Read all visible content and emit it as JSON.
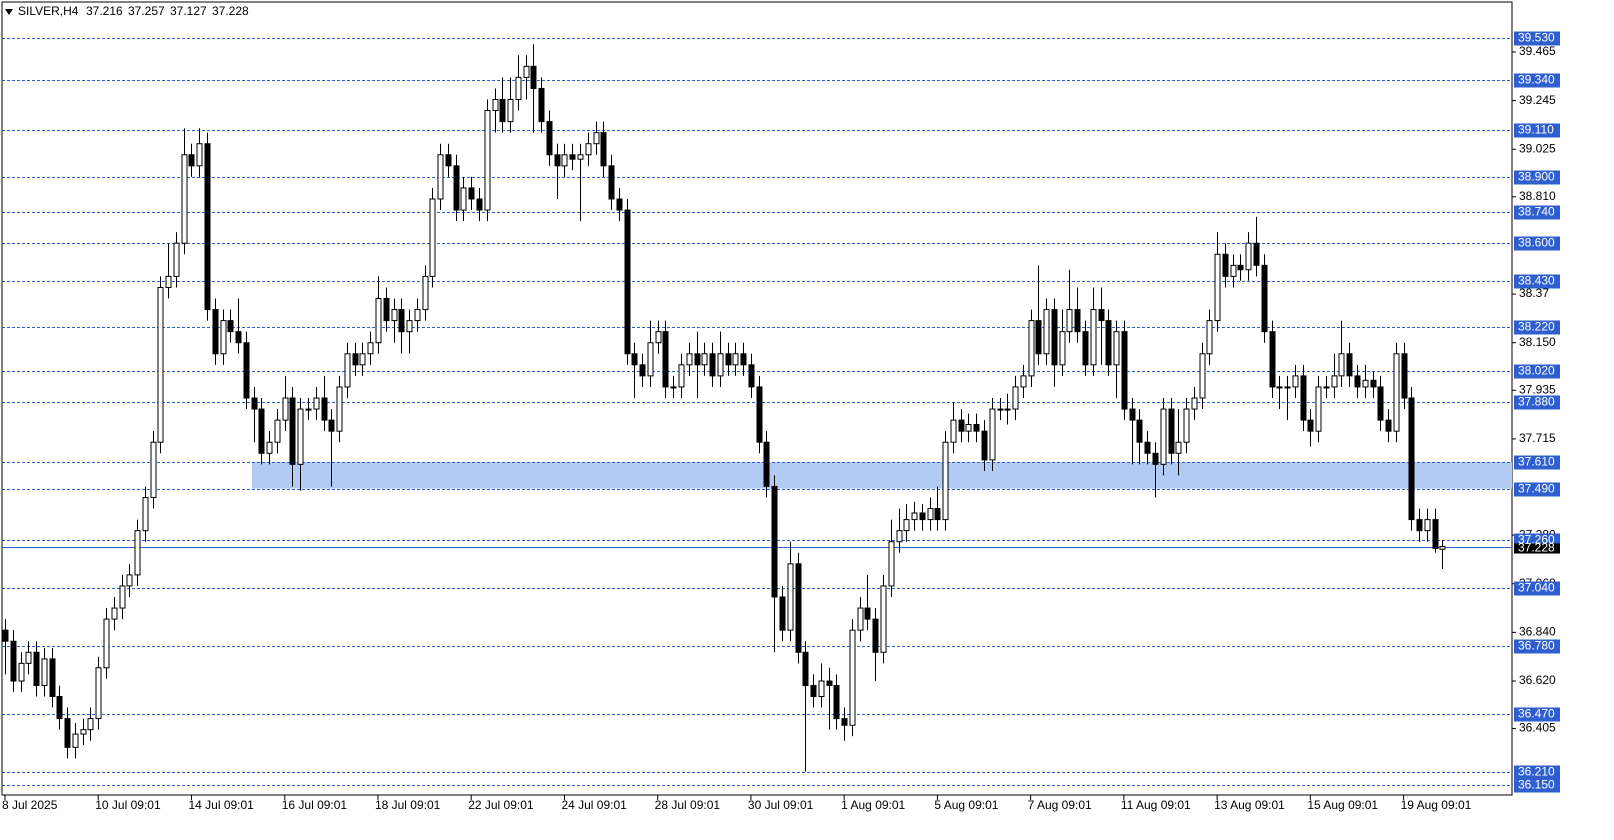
{
  "chart_data": {
    "type": "candlestick",
    "symbol": "SILVER,H4",
    "header_values": [
      37.216,
      37.257,
      37.127,
      37.228
    ],
    "categories": [
      "8 Jul 2025",
      null,
      null,
      null,
      null,
      null,
      null,
      null,
      null,
      null,
      null,
      null,
      "10 Jul 09:01",
      null,
      null,
      null,
      null,
      null,
      null,
      null,
      null,
      null,
      null,
      null,
      "14 Jul 09:01",
      null,
      null,
      null,
      null,
      null,
      null,
      null,
      null,
      null,
      null,
      null,
      "16 Jul 09:01",
      null,
      null,
      null,
      null,
      null,
      null,
      null,
      null,
      null,
      null,
      null,
      "18 Jul 09:01",
      null,
      null,
      null,
      null,
      null,
      null,
      null,
      null,
      null,
      null,
      null,
      "22 Jul 09:01",
      null,
      null,
      null,
      null,
      null,
      null,
      null,
      null,
      null,
      null,
      null,
      "24 Jul 09:01",
      null,
      null,
      null,
      null,
      null,
      null,
      null,
      null,
      null,
      null,
      null,
      "28 Jul 09:01",
      null,
      null,
      null,
      null,
      null,
      null,
      null,
      null,
      null,
      null,
      null,
      "30 Jul 09:01",
      null,
      null,
      null,
      null,
      null,
      null,
      null,
      null,
      null,
      null,
      null,
      "1 Aug 09:01",
      null,
      null,
      null,
      null,
      null,
      null,
      null,
      null,
      null,
      null,
      null,
      "5 Aug 09:01",
      null,
      null,
      null,
      null,
      null,
      null,
      null,
      null,
      null,
      null,
      null,
      "7 Aug 09:01",
      null,
      null,
      null,
      null,
      null,
      null,
      null,
      null,
      null,
      null,
      null,
      "11 Aug 09:01",
      null,
      null,
      null,
      null,
      null,
      null,
      null,
      null,
      null,
      null,
      null,
      "13 Aug 09:01",
      null,
      null,
      null,
      null,
      null,
      null,
      null,
      null,
      null,
      null,
      null,
      "15 Aug 09:01",
      null,
      null,
      null,
      null,
      null,
      null,
      null,
      null,
      null,
      null,
      null,
      "19 Aug 09:01",
      null,
      null,
      null,
      null,
      null
    ],
    "open": [
      36.85,
      36.8,
      36.62,
      36.7,
      36.75,
      36.6,
      36.72,
      36.55,
      36.45,
      36.32,
      36.38,
      36.4,
      36.45,
      36.68,
      36.9,
      36.95,
      37.05,
      37.1,
      37.3,
      37.45,
      37.7,
      38.4,
      38.45,
      38.6,
      39.0,
      38.95,
      39.05,
      38.3,
      38.1,
      38.25,
      38.2,
      38.15,
      37.9,
      37.85,
      37.65,
      37.7,
      37.8,
      37.9,
      37.6,
      37.85,
      37.85,
      37.9,
      37.8,
      37.75,
      37.95,
      38.1,
      38.05,
      38.1,
      38.15,
      38.35,
      38.25,
      38.3,
      38.2,
      38.25,
      38.3,
      38.45,
      38.8,
      39.0,
      38.95,
      38.75,
      38.85,
      38.8,
      38.75,
      39.2,
      39.25,
      39.15,
      39.25,
      39.35,
      39.4,
      39.3,
      39.15,
      39.0,
      38.95,
      39.0,
      38.98,
      39.0,
      39.05,
      39.1,
      38.95,
      38.8,
      38.75,
      38.1,
      38.05,
      38.0,
      38.15,
      38.2,
      37.95,
      37.95,
      38.05,
      38.1,
      38.05,
      38.1,
      38.0,
      38.1,
      38.05,
      38.1,
      38.05,
      37.95,
      37.7,
      37.5,
      37.0,
      36.85,
      37.15,
      36.75,
      36.6,
      36.55,
      36.62,
      36.6,
      36.45,
      36.42,
      36.85,
      36.95,
      36.9,
      36.75,
      37.05,
      37.25,
      37.3,
      37.35,
      37.38,
      37.35,
      37.4,
      37.35,
      37.7,
      37.8,
      37.75,
      37.78,
      37.75,
      37.62,
      37.85,
      37.85,
      37.85,
      37.95,
      38.0,
      38.25,
      38.1,
      38.3,
      38.05,
      38.2,
      38.3,
      38.2,
      38.05,
      38.3,
      38.25,
      38.05,
      38.2,
      37.85,
      37.8,
      37.7,
      37.65,
      37.6,
      37.85,
      37.65,
      37.7,
      37.85,
      37.9,
      38.1,
      38.25,
      38.55,
      38.45,
      38.5,
      38.48,
      38.6,
      38.5,
      38.2,
      37.95,
      37.95,
      37.95,
      38.0,
      37.8,
      37.75,
      37.95,
      37.95,
      38.0,
      38.1,
      38.0,
      37.95,
      37.98,
      37.95,
      37.8,
      37.75,
      38.1,
      37.9,
      37.35,
      37.3,
      37.35,
      37.216
    ],
    "high": [
      36.9,
      36.85,
      36.75,
      36.8,
      36.8,
      36.77,
      36.77,
      36.6,
      36.5,
      36.43,
      36.45,
      36.5,
      36.73,
      36.95,
      37.0,
      37.1,
      37.15,
      37.35,
      37.5,
      37.75,
      38.45,
      38.6,
      38.65,
      39.12,
      39.05,
      39.12,
      39.1,
      38.35,
      38.3,
      38.3,
      38.35,
      38.2,
      37.95,
      37.9,
      37.75,
      37.85,
      38.0,
      37.95,
      37.9,
      37.9,
      37.95,
      38.0,
      37.85,
      38.0,
      38.15,
      38.15,
      38.15,
      38.2,
      38.45,
      38.4,
      38.35,
      38.35,
      38.3,
      38.35,
      38.5,
      38.85,
      39.05,
      39.05,
      39.0,
      38.9,
      38.9,
      38.85,
      39.25,
      39.3,
      39.35,
      39.35,
      39.45,
      39.45,
      39.5,
      39.35,
      39.2,
      39.05,
      39.05,
      39.05,
      39.05,
      39.1,
      39.15,
      39.15,
      39.0,
      38.85,
      38.8,
      38.15,
      38.1,
      38.25,
      38.25,
      38.25,
      38.0,
      38.1,
      38.15,
      38.2,
      38.15,
      38.15,
      38.2,
      38.15,
      38.15,
      38.15,
      38.1,
      38.0,
      37.75,
      37.55,
      37.05,
      37.25,
      37.2,
      36.8,
      36.65,
      36.7,
      36.68,
      36.65,
      36.5,
      36.9,
      37.0,
      37.1,
      36.95,
      37.1,
      37.35,
      37.4,
      37.42,
      37.43,
      37.42,
      37.45,
      37.5,
      37.75,
      37.88,
      37.85,
      37.83,
      37.83,
      37.8,
      37.9,
      37.9,
      37.92,
      38.0,
      38.05,
      38.3,
      38.5,
      38.35,
      38.35,
      38.3,
      38.48,
      38.4,
      38.25,
      38.4,
      38.4,
      38.3,
      38.25,
      38.25,
      37.9,
      37.85,
      37.75,
      37.7,
      37.9,
      37.9,
      37.85,
      37.9,
      37.95,
      38.15,
      38.3,
      38.65,
      38.6,
      38.55,
      38.55,
      38.65,
      38.72,
      38.55,
      38.25,
      38.0,
      38.0,
      38.05,
      38.05,
      37.85,
      38.0,
      38.0,
      38.1,
      38.25,
      38.15,
      38.05,
      38.05,
      38.02,
      38.0,
      37.85,
      38.15,
      38.15,
      37.95,
      37.4,
      37.4,
      37.4,
      37.257
    ],
    "low": [
      36.65,
      36.57,
      36.57,
      36.65,
      36.55,
      36.55,
      36.5,
      36.4,
      36.27,
      36.27,
      36.33,
      36.35,
      36.4,
      36.63,
      36.85,
      36.9,
      37.0,
      37.05,
      37.25,
      37.4,
      37.65,
      38.35,
      38.4,
      38.55,
      38.9,
      38.9,
      38.25,
      38.05,
      38.05,
      38.15,
      38.1,
      37.85,
      37.7,
      37.6,
      37.6,
      37.65,
      37.75,
      37.5,
      37.48,
      37.8,
      37.8,
      37.75,
      37.5,
      37.7,
      37.9,
      38.0,
      38.0,
      38.05,
      38.1,
      38.2,
      38.15,
      38.1,
      38.1,
      38.2,
      38.25,
      38.4,
      38.75,
      38.9,
      38.7,
      38.7,
      38.75,
      38.7,
      38.7,
      39.1,
      39.1,
      39.1,
      39.2,
      39.25,
      39.1,
      39.1,
      38.95,
      38.8,
      38.9,
      38.93,
      38.7,
      38.95,
      39.0,
      38.9,
      38.75,
      38.7,
      38.05,
      37.9,
      37.95,
      37.95,
      38.1,
      37.9,
      37.9,
      37.9,
      38.0,
      37.9,
      38.0,
      37.95,
      37.95,
      38.0,
      38.0,
      38.0,
      37.9,
      37.65,
      37.45,
      36.75,
      36.8,
      36.8,
      36.7,
      36.21,
      36.5,
      36.5,
      36.4,
      36.4,
      36.35,
      36.37,
      36.8,
      36.85,
      36.62,
      36.7,
      37.0,
      37.2,
      37.25,
      37.3,
      37.3,
      37.3,
      37.3,
      37.3,
      37.65,
      37.7,
      37.7,
      37.7,
      37.57,
      37.57,
      37.8,
      37.78,
      37.8,
      37.9,
      37.95,
      38.05,
      38.05,
      37.95,
      38.0,
      38.15,
      38.15,
      38.0,
      38.0,
      38.05,
      38.0,
      37.9,
      37.8,
      37.6,
      37.6,
      37.6,
      37.45,
      37.55,
      37.6,
      37.55,
      37.65,
      37.8,
      37.85,
      38.05,
      38.2,
      38.4,
      38.4,
      38.43,
      38.43,
      38.45,
      38.15,
      37.9,
      37.85,
      37.8,
      37.9,
      37.75,
      37.68,
      37.7,
      37.9,
      37.9,
      37.95,
      37.95,
      37.9,
      37.9,
      37.9,
      37.75,
      37.7,
      37.7,
      37.85,
      37.3,
      37.25,
      37.25,
      37.2,
      37.127
    ],
    "close": [
      36.8,
      36.62,
      36.7,
      36.75,
      36.6,
      36.72,
      36.55,
      36.45,
      36.32,
      36.38,
      36.4,
      36.45,
      36.68,
      36.9,
      36.95,
      37.05,
      37.1,
      37.3,
      37.45,
      37.7,
      38.4,
      38.45,
      38.6,
      39.0,
      38.95,
      39.05,
      38.3,
      38.1,
      38.25,
      38.2,
      38.15,
      37.9,
      37.85,
      37.65,
      37.7,
      37.8,
      37.9,
      37.6,
      37.85,
      37.85,
      37.9,
      37.8,
      37.75,
      37.95,
      38.1,
      38.05,
      38.1,
      38.15,
      38.35,
      38.25,
      38.3,
      38.2,
      38.25,
      38.3,
      38.45,
      38.8,
      39.0,
      38.95,
      38.75,
      38.85,
      38.8,
      38.75,
      39.2,
      39.25,
      39.15,
      39.25,
      39.35,
      39.4,
      39.3,
      39.15,
      39.0,
      38.95,
      39.0,
      38.98,
      39.0,
      39.05,
      39.1,
      38.95,
      38.8,
      38.75,
      38.1,
      38.05,
      38.0,
      38.15,
      38.2,
      37.95,
      37.95,
      38.05,
      38.1,
      38.05,
      38.1,
      38.0,
      38.1,
      38.05,
      38.1,
      38.05,
      37.95,
      37.7,
      37.5,
      37.0,
      36.85,
      37.15,
      36.75,
      36.6,
      36.55,
      36.62,
      36.6,
      36.45,
      36.42,
      36.85,
      36.95,
      36.9,
      36.75,
      37.05,
      37.25,
      37.3,
      37.35,
      37.38,
      37.35,
      37.4,
      37.35,
      37.7,
      37.8,
      37.75,
      37.78,
      37.75,
      37.62,
      37.85,
      37.85,
      37.85,
      37.95,
      38.0,
      38.25,
      38.1,
      38.3,
      38.05,
      38.2,
      38.3,
      38.2,
      38.05,
      38.3,
      38.25,
      38.05,
      38.2,
      37.85,
      37.8,
      37.7,
      37.65,
      37.6,
      37.85,
      37.65,
      37.7,
      37.85,
      37.9,
      38.1,
      38.25,
      38.55,
      38.45,
      38.5,
      38.48,
      38.6,
      38.5,
      38.2,
      37.95,
      37.95,
      37.95,
      38.0,
      37.8,
      37.75,
      37.95,
      37.95,
      38.0,
      38.1,
      38.0,
      37.95,
      37.98,
      37.95,
      37.8,
      37.75,
      38.1,
      37.9,
      37.35,
      37.3,
      37.35,
      37.22,
      37.228
    ],
    "ylim": [
      36.1,
      39.7
    ],
    "yticks": [
      39.465,
      39.245,
      39.025,
      {
        "value": 38.81,
        "label": "38.810"
      },
      38.37,
      {
        "value": 38.15,
        "label": "38.150"
      },
      37.935,
      37.715,
      {
        "value": 37.28,
        "label": "37.280"
      },
      {
        "value": 37.06,
        "label": "37.060"
      },
      {
        "value": 36.84,
        "label": "36.840"
      },
      {
        "value": 36.62,
        "label": "36.620"
      },
      36.405
    ],
    "levels": [
      {
        "value": 39.53,
        "label": "39.530"
      },
      {
        "value": 39.34,
        "label": "39.340"
      },
      {
        "value": 39.11,
        "label": "39.110"
      },
      {
        "value": 38.9,
        "label": "38.900"
      },
      {
        "value": 38.74,
        "label": "38.740"
      },
      {
        "value": 38.6,
        "label": "38.600"
      },
      {
        "value": 38.43,
        "label": "38.430"
      },
      {
        "value": 38.22,
        "label": "38.220"
      },
      {
        "value": 38.02,
        "label": "38.020"
      },
      {
        "value": 37.88,
        "label": "37.880"
      },
      {
        "value": 37.61,
        "label": "37.610"
      },
      {
        "value": 37.49,
        "label": "37.490"
      },
      {
        "value": 37.26,
        "label": "37.260"
      },
      {
        "value": 37.04,
        "label": "37.040"
      },
      {
        "value": 36.78,
        "label": "36.780"
      },
      {
        "value": 36.47,
        "label": "36.470"
      },
      {
        "value": 36.21,
        "label": "36.210"
      },
      {
        "value": 36.15,
        "label": "36.150"
      }
    ],
    "zone": [
      37.49,
      37.61
    ],
    "bull_color": "#ffffff",
    "bear_color": "#000000",
    "level_color": "#2f5fcf",
    "zone_color": "#b1cbf4"
  }
}
